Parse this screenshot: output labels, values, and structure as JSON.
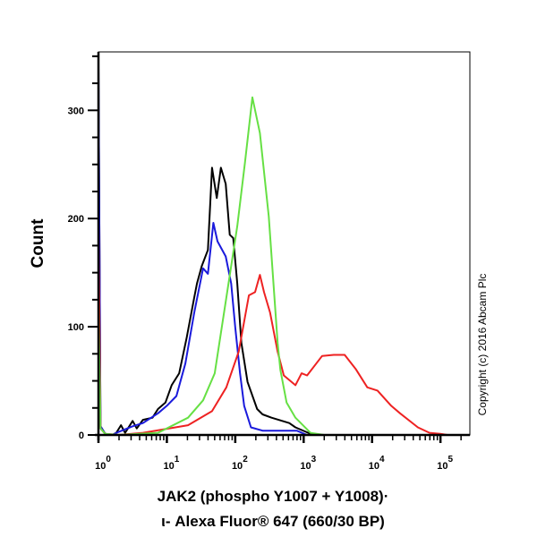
{
  "chart_data": {
    "type": "line",
    "xscale": "log",
    "xlim_log10": [
      0,
      5.43
    ],
    "ylim": [
      0,
      354
    ],
    "grid": false,
    "ylabel": "Count",
    "xlabel_line1": "JAK2 (phospho Y1007 + Y1008)·",
    "xlabel_line2": "ι- Alexa Fluor® 647 (660/30 BP)",
    "copyright": "Copyright (c) 2016 Abcam Plc",
    "y_ticks": [
      0,
      100,
      200,
      300
    ],
    "y_tick_labels": [
      "0",
      "100",
      "200",
      "300"
    ],
    "x_ticks_log10": [
      0,
      1,
      2,
      3,
      4,
      5
    ],
    "x_tick_base": "10",
    "x_tick_exponents": [
      "0",
      "1",
      "2",
      "3",
      "4",
      "5"
    ],
    "series": [
      {
        "color": "#000000",
        "points": [
          [
            0,
            340
          ],
          [
            0.03,
            8
          ],
          [
            0.1,
            1
          ],
          [
            0.2,
            0
          ],
          [
            0.26,
            2
          ],
          [
            0.33,
            9
          ],
          [
            0.39,
            2
          ],
          [
            0.5,
            13
          ],
          [
            0.56,
            6
          ],
          [
            0.65,
            14
          ],
          [
            0.79,
            16
          ],
          [
            0.87,
            24
          ],
          [
            0.98,
            30
          ],
          [
            1.07,
            46
          ],
          [
            1.18,
            57
          ],
          [
            1.29,
            90
          ],
          [
            1.4,
            127
          ],
          [
            1.44,
            140
          ],
          [
            1.51,
            156
          ],
          [
            1.6,
            171
          ],
          [
            1.66,
            247
          ],
          [
            1.73,
            219
          ],
          [
            1.79,
            247
          ],
          [
            1.86,
            232
          ],
          [
            1.92,
            185
          ],
          [
            1.97,
            182
          ],
          [
            2.03,
            140
          ],
          [
            2.09,
            85
          ],
          [
            2.18,
            49
          ],
          [
            2.32,
            24
          ],
          [
            2.4,
            19
          ],
          [
            2.53,
            16
          ],
          [
            2.79,
            11
          ],
          [
            2.88,
            7
          ],
          [
            3.14,
            0
          ],
          [
            5.43,
            0
          ]
        ]
      },
      {
        "color": "#1a1adc",
        "points": [
          [
            0,
            345
          ],
          [
            0.03,
            8
          ],
          [
            0.1,
            1
          ],
          [
            0.2,
            0
          ],
          [
            0.3,
            3
          ],
          [
            0.5,
            8
          ],
          [
            0.65,
            11
          ],
          [
            0.87,
            20
          ],
          [
            1.0,
            27
          ],
          [
            1.14,
            36
          ],
          [
            1.27,
            66
          ],
          [
            1.4,
            113
          ],
          [
            1.53,
            154
          ],
          [
            1.6,
            149
          ],
          [
            1.68,
            196
          ],
          [
            1.74,
            179
          ],
          [
            1.86,
            165
          ],
          [
            1.94,
            140
          ],
          [
            2.0,
            99
          ],
          [
            2.07,
            57
          ],
          [
            2.13,
            27
          ],
          [
            2.23,
            7
          ],
          [
            2.4,
            4
          ],
          [
            2.9,
            4
          ],
          [
            3.05,
            0
          ],
          [
            5.43,
            0
          ]
        ]
      },
      {
        "color": "#ee2222",
        "points": [
          [
            0,
            200
          ],
          [
            0.03,
            6
          ],
          [
            0.1,
            1
          ],
          [
            0.3,
            0
          ],
          [
            0.65,
            2
          ],
          [
            1.31,
            9
          ],
          [
            1.66,
            22
          ],
          [
            1.87,
            44
          ],
          [
            2.05,
            77
          ],
          [
            2.2,
            129
          ],
          [
            2.29,
            132
          ],
          [
            2.36,
            148
          ],
          [
            2.42,
            132
          ],
          [
            2.51,
            113
          ],
          [
            2.62,
            77
          ],
          [
            2.71,
            55
          ],
          [
            2.88,
            46
          ],
          [
            2.97,
            57
          ],
          [
            3.05,
            55
          ],
          [
            3.27,
            73
          ],
          [
            3.44,
            74
          ],
          [
            3.6,
            74
          ],
          [
            3.76,
            61
          ],
          [
            3.93,
            44
          ],
          [
            4.08,
            41
          ],
          [
            4.28,
            27
          ],
          [
            4.41,
            20
          ],
          [
            4.67,
            7
          ],
          [
            4.84,
            2
          ],
          [
            5.0,
            1
          ],
          [
            5.1,
            0
          ],
          [
            5.43,
            0
          ]
        ]
      },
      {
        "color": "#66e044",
        "points": [
          [
            0,
            120
          ],
          [
            0.03,
            6
          ],
          [
            0.1,
            1
          ],
          [
            0.3,
            0
          ],
          [
            0.87,
            2
          ],
          [
            1.31,
            16
          ],
          [
            1.53,
            32
          ],
          [
            1.7,
            57
          ],
          [
            1.87,
            127
          ],
          [
            2.03,
            193
          ],
          [
            2.14,
            251
          ],
          [
            2.25,
            312
          ],
          [
            2.36,
            279
          ],
          [
            2.49,
            202
          ],
          [
            2.62,
            85
          ],
          [
            2.66,
            60
          ],
          [
            2.75,
            30
          ],
          [
            2.88,
            16
          ],
          [
            3.1,
            2
          ],
          [
            3.3,
            0
          ],
          [
            5.43,
            0
          ]
        ]
      }
    ]
  }
}
